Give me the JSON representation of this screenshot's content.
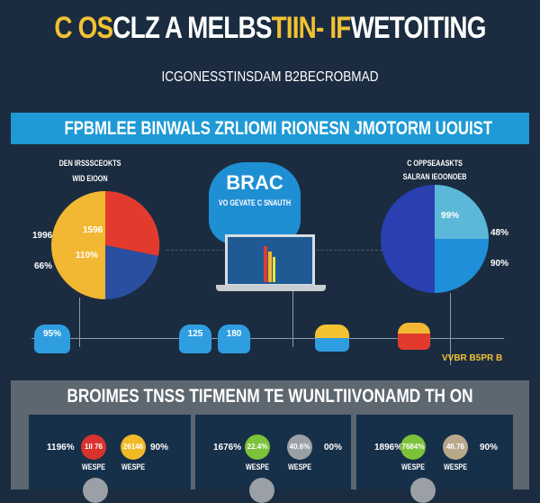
{
  "header": {
    "title_parts": [
      "C OS",
      "CLZ A MELBS",
      "TIIN- IF",
      "WETOITING"
    ],
    "subtitle": "ICGONESSTINSDAM B2BECROBMAD",
    "banner": "FPBMLEE BINWALS ZRLIOMI RIONESN JMOTORM UOUIST"
  },
  "left_pie": {
    "title_1": "DEN IRSSSCEOKTS",
    "title_2": "WID EIOON",
    "labels": [
      "1996",
      "1596",
      "110%",
      "66%"
    ],
    "colors": [
      "#f2b833",
      "#e23b2e",
      "#2a4fa0"
    ]
  },
  "right_pie": {
    "title_1": "C OPPSEAASKTS",
    "title_2": "SALRAN IEOONOEB",
    "labels": [
      "99%",
      "48%",
      "90%"
    ],
    "colors": [
      "#2a3fb0",
      "#5bb8d8",
      "#1e8fd8"
    ]
  },
  "center": {
    "blob_title": "BRAC",
    "blob_sub": "VO GEVATE C SNAUTH"
  },
  "timeline": {
    "items": [
      "95%",
      "125",
      "180"
    ],
    "tag": "VVBR B5PR B"
  },
  "bottom": {
    "title": "BROIMES TNSS   TIFMENM TE WUNLTIIVONAMD TH ON",
    "panels": [
      {
        "left": "1196%",
        "right": "90%",
        "circles": [
          {
            "text": "1II 76",
            "color": "#d9322c",
            "label": "WESPE"
          },
          {
            "text": "26146",
            "color": "#f0b928",
            "label": "WESPE"
          }
        ]
      },
      {
        "left": "1676%",
        "right": "00%",
        "circles": [
          {
            "text": "22.4%",
            "color": "#7cc23a",
            "label": "WESPE"
          },
          {
            "text": "40.6%",
            "color": "#9aa0a6",
            "label": "WESPE"
          }
        ]
      },
      {
        "left": "1896%",
        "right": "90%",
        "circles": [
          {
            "text": "7684%",
            "color": "#7cc23a",
            "label": "WESPE"
          },
          {
            "text": "46.76",
            "color": "#b8a88a",
            "label": "WESPE"
          }
        ]
      }
    ]
  }
}
